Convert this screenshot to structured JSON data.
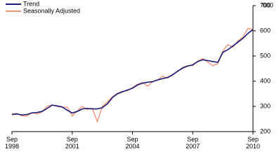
{
  "chart_data": {
    "type": "line",
    "y_unit": "'000",
    "x": [
      1998.75,
      1999.0,
      1999.25,
      1999.5,
      1999.75,
      2000.0,
      2000.25,
      2000.5,
      2000.75,
      2001.0,
      2001.25,
      2001.5,
      2001.75,
      2002.0,
      2002.25,
      2002.5,
      2002.75,
      2003.0,
      2003.25,
      2003.5,
      2003.75,
      2004.0,
      2004.25,
      2004.5,
      2004.75,
      2005.0,
      2005.25,
      2005.5,
      2005.75,
      2006.0,
      2006.25,
      2006.5,
      2006.75,
      2007.0,
      2007.25,
      2007.5,
      2007.75,
      2008.0,
      2008.25,
      2008.5,
      2008.75,
      2009.0,
      2009.25,
      2009.5,
      2009.75,
      2010.0,
      2010.25,
      2010.5,
      2010.75
    ],
    "series": [
      {
        "name": "Trend",
        "color": "#1a1a78",
        "values": [
          268,
          270,
          266,
          268,
          274,
          276,
          280,
          292,
          305,
          302,
          298,
          285,
          274,
          280,
          290,
          292,
          290,
          290,
          295,
          310,
          335,
          350,
          358,
          365,
          372,
          385,
          392,
          396,
          398,
          405,
          410,
          415,
          425,
          440,
          452,
          460,
          465,
          478,
          485,
          482,
          478,
          475,
          515,
          525,
          540,
          555,
          570,
          590,
          605
        ]
      },
      {
        "name": "Seasonally Adjusted",
        "color": "#f4937a",
        "values": [
          270,
          272,
          262,
          262,
          276,
          270,
          278,
          300,
          306,
          300,
          296,
          298,
          262,
          282,
          300,
          288,
          293,
          240,
          300,
          318,
          338,
          352,
          360,
          362,
          375,
          388,
          395,
          380,
          398,
          405,
          420,
          412,
          428,
          438,
          455,
          462,
          462,
          480,
          490,
          476,
          462,
          470,
          520,
          545,
          535,
          560,
          575,
          610,
          605
        ]
      }
    ],
    "xlim": [
      1998.75,
      2010.75
    ],
    "xticks": [
      {
        "value": 1998.75,
        "label": "Sep 1998"
      },
      {
        "value": 2001.75,
        "label": "Sep 2001"
      },
      {
        "value": 2004.75,
        "label": "Sep 2004"
      },
      {
        "value": 2007.75,
        "label": "Sep 2007"
      },
      {
        "value": 2010.75,
        "label": "Sep 2010"
      }
    ],
    "ylim": [
      200,
      700
    ],
    "yticks": [
      200,
      300,
      400,
      500,
      600,
      700
    ],
    "legend": "top-left"
  }
}
